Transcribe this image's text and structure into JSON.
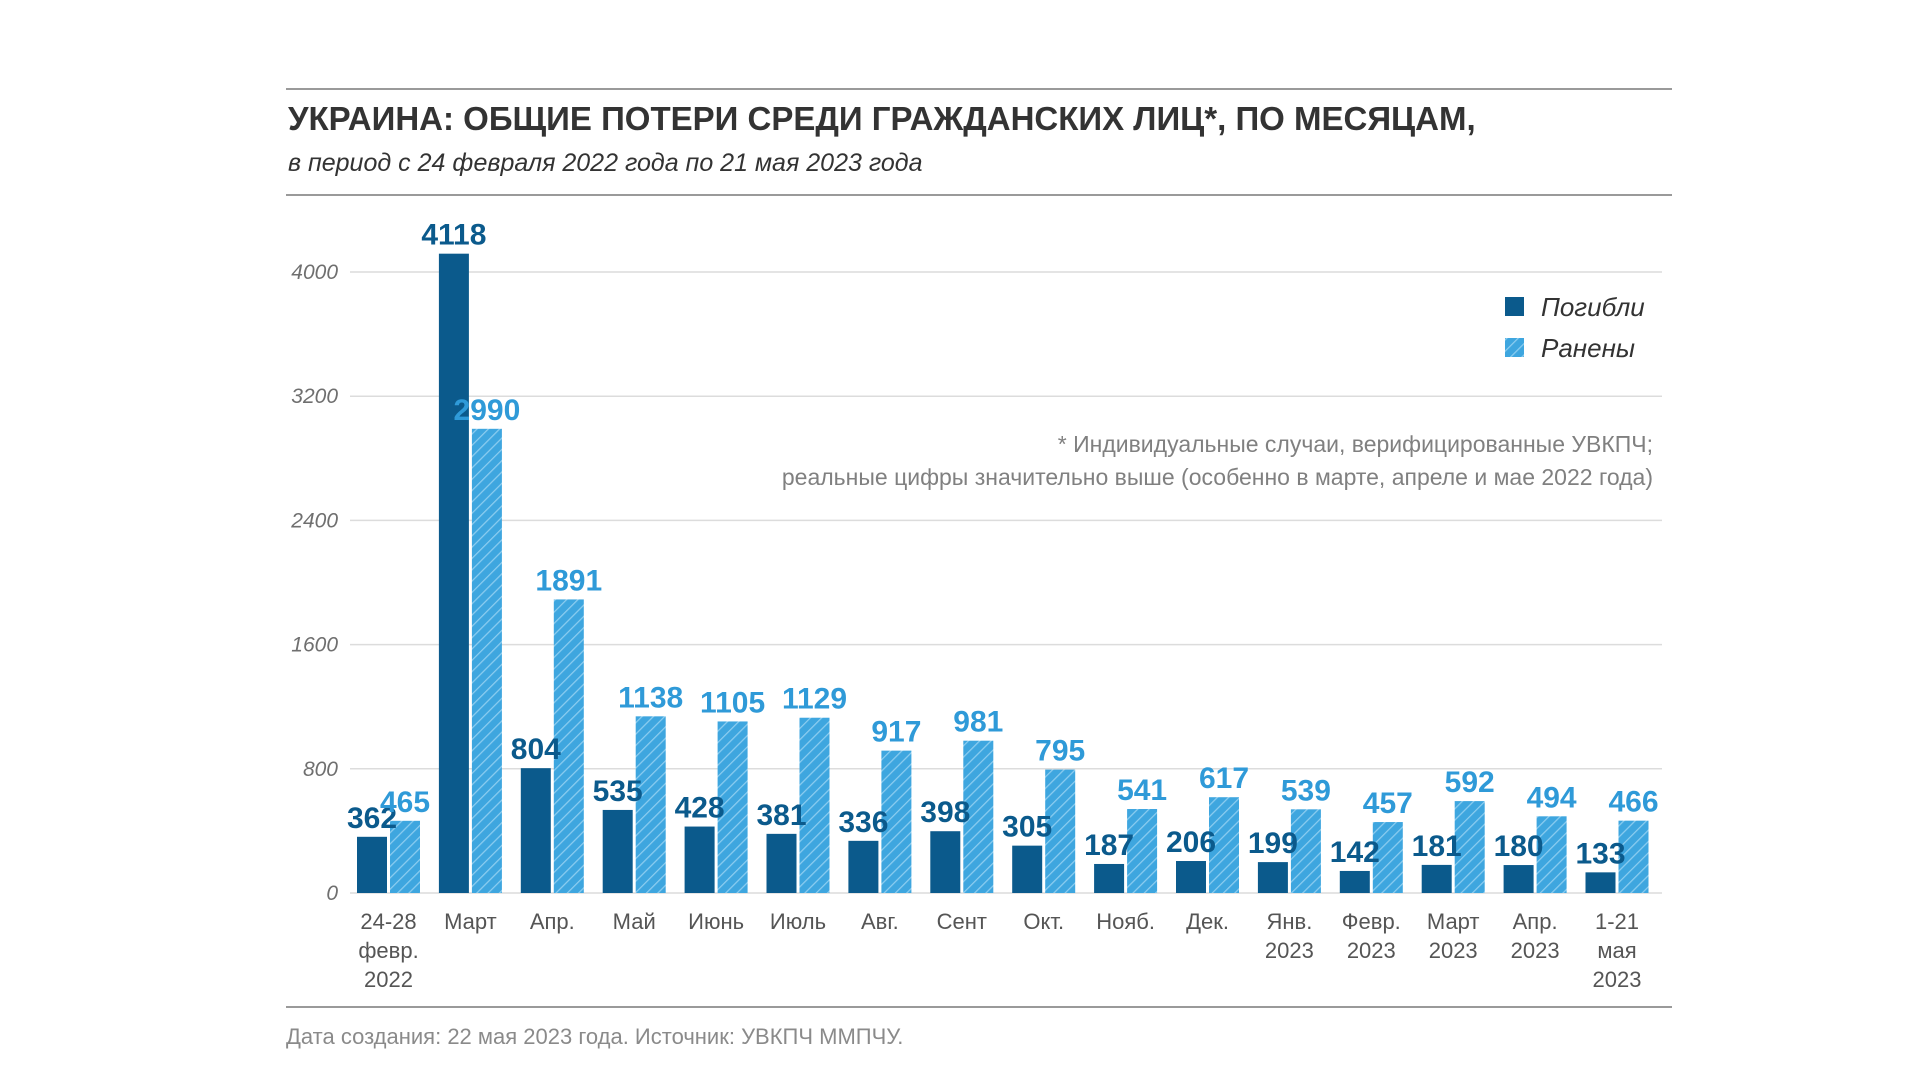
{
  "colors": {
    "killed": "#0b5a8c",
    "injured": "#3ea6df",
    "injured_hatch": "#8ccdf0",
    "label_killed": "#0b5a8c",
    "label_injured": "#2f9ad8",
    "gridline": "#dcdcdc",
    "rule": "#9a9a9a"
  },
  "chart_data": {
    "type": "bar",
    "title": "УКРАИНА: ОБЩИЕ ПОТЕРИ СРЕДИ ГРАЖДАНСКИХ ЛИЦ*, ПО МЕСЯЦАМ,",
    "subtitle": "в период с 24 февраля 2022 года по 21 мая 2023 года",
    "xlabel": "",
    "ylabel": "",
    "ylim": [
      0,
      4000
    ],
    "yticks": [
      0,
      800,
      1600,
      2400,
      3200,
      4000
    ],
    "grid": true,
    "legend_position": "top-right",
    "categories": [
      [
        "24-28",
        "февр.",
        "2022"
      ],
      [
        "Март"
      ],
      [
        "Апр."
      ],
      [
        "Май"
      ],
      [
        "Июнь"
      ],
      [
        "Июль"
      ],
      [
        "Авг."
      ],
      [
        "Сент"
      ],
      [
        "Окт."
      ],
      [
        "Нояб."
      ],
      [
        "Дек."
      ],
      [
        "Янв.",
        "2023"
      ],
      [
        "Февр.",
        "2023"
      ],
      [
        "Март",
        "2023"
      ],
      [
        "Апр.",
        "2023"
      ],
      [
        "1-21",
        "мая",
        "2023"
      ]
    ],
    "series": [
      {
        "name": "Погибли",
        "key": "killed",
        "values": [
          362,
          4118,
          804,
          535,
          428,
          381,
          336,
          398,
          305,
          187,
          206,
          199,
          142,
          181,
          180,
          133
        ]
      },
      {
        "name": "Ранены",
        "key": "injured",
        "values": [
          465,
          2990,
          1891,
          1138,
          1105,
          1129,
          917,
          981,
          795,
          541,
          617,
          539,
          457,
          592,
          494,
          466
        ]
      }
    ],
    "note": [
      "* Индивидуальные случаи, верифицированные УВКПЧ;",
      "реальные цифры значительно выше (особенно в марте, апреле и мае 2022 года)"
    ],
    "source": "Дата создания: 22 мая 2023 года. Источник: УВКПЧ ММПЧУ."
  }
}
